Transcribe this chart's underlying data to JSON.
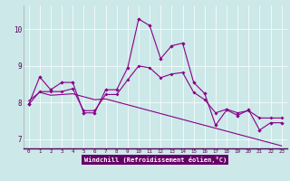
{
  "xlabel": "Windchill (Refroidissement éolien,°C)",
  "bg_color": "#cce8e8",
  "line_color": "#880088",
  "grid_color": "#ffffff",
  "xlim": [
    -0.5,
    23.5
  ],
  "ylim": [
    6.75,
    10.65
  ],
  "xticks": [
    0,
    1,
    2,
    3,
    4,
    5,
    6,
    7,
    8,
    9,
    10,
    11,
    12,
    13,
    14,
    15,
    16,
    17,
    18,
    19,
    20,
    21,
    22,
    23
  ],
  "yticks": [
    7,
    8,
    9,
    10
  ],
  "line1_x": [
    0,
    1,
    2,
    3,
    4,
    5,
    6,
    7,
    8,
    9,
    10,
    11,
    12,
    13,
    14,
    15,
    16,
    17,
    18,
    19,
    20,
    21,
    22,
    23
  ],
  "line1_y": [
    7.95,
    8.7,
    8.35,
    8.55,
    8.55,
    7.72,
    7.72,
    8.35,
    8.35,
    8.95,
    10.28,
    10.1,
    9.2,
    9.55,
    9.62,
    8.55,
    8.25,
    7.38,
    7.8,
    7.65,
    7.8,
    7.25,
    7.45,
    7.45
  ],
  "line2_x": [
    0,
    1,
    2,
    3,
    4,
    5,
    6,
    7,
    8,
    9,
    10,
    11,
    12,
    13,
    14,
    15,
    16,
    17,
    18,
    19,
    20,
    21,
    22,
    23
  ],
  "line2_y": [
    8.05,
    8.28,
    8.2,
    8.22,
    8.24,
    8.16,
    8.08,
    8.1,
    8.02,
    7.94,
    7.86,
    7.78,
    7.7,
    7.62,
    7.54,
    7.46,
    7.38,
    7.3,
    7.22,
    7.14,
    7.06,
    6.98,
    6.9,
    6.82
  ],
  "line3_x": [
    0,
    1,
    2,
    3,
    4,
    5,
    6,
    7,
    8,
    9,
    10,
    11,
    12,
    13,
    14,
    15,
    16,
    17,
    18,
    19,
    20,
    21,
    22,
    23
  ],
  "line3_y": [
    7.95,
    8.3,
    8.3,
    8.3,
    8.38,
    7.78,
    7.78,
    8.22,
    8.22,
    8.62,
    9.0,
    8.95,
    8.68,
    8.78,
    8.82,
    8.28,
    8.08,
    7.72,
    7.82,
    7.72,
    7.78,
    7.58,
    7.58,
    7.58
  ]
}
